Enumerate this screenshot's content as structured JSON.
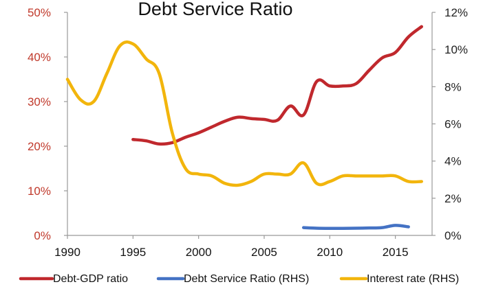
{
  "chart_data": {
    "type": "line",
    "title": "Debt Service Ratio",
    "x_ticks": [
      "1990",
      "1995",
      "2000",
      "2005",
      "2010",
      "2015"
    ],
    "x_ticks_values": [
      1990,
      1995,
      2000,
      2005,
      2010,
      2015
    ],
    "xlim": [
      1990,
      2017.8
    ],
    "y_left": {
      "ticks": [
        "0%",
        "10%",
        "20%",
        "30%",
        "40%",
        "50%"
      ],
      "tick_values": [
        0,
        10,
        20,
        30,
        40,
        50
      ],
      "ylim": [
        0,
        50
      ],
      "color": "#c0392b"
    },
    "y_right": {
      "ticks": [
        "0%",
        "2%",
        "4%",
        "6%",
        "8%",
        "10%",
        "12%"
      ],
      "tick_values": [
        0,
        2,
        4,
        6,
        8,
        10,
        12
      ],
      "ylim": [
        0,
        12
      ]
    },
    "series": [
      {
        "name": "Debt-GDP ratio",
        "axis": "left",
        "color": "#c0282d",
        "x": [
          1995,
          1996,
          1997,
          1998,
          1999,
          2000,
          2001,
          2002,
          2003,
          2004,
          2005,
          2006,
          2007,
          2008,
          2009,
          2010,
          2011,
          2012,
          2013,
          2014,
          2015,
          2016,
          2017
        ],
        "y": [
          21.5,
          21.2,
          20.5,
          20.8,
          22.0,
          23.0,
          24.3,
          25.6,
          26.5,
          26.2,
          26.0,
          25.8,
          29.0,
          27.0,
          34.5,
          33.5,
          33.5,
          34.0,
          37.0,
          39.8,
          41.0,
          44.5,
          46.8
        ]
      },
      {
        "name": "Debt Service Ratio (RHS)",
        "axis": "right",
        "color": "#4472c4",
        "x": [
          2008,
          2009,
          2010,
          2011,
          2012,
          2013,
          2014,
          2015,
          2016
        ],
        "y": [
          0.42,
          0.39,
          0.38,
          0.38,
          0.39,
          0.4,
          0.42,
          0.54,
          0.46
        ]
      },
      {
        "name": "Interest rate (RHS)",
        "axis": "right",
        "color": "#f2b50c",
        "x": [
          1990,
          1991,
          1992,
          1993,
          1994,
          1995,
          1996,
          1997,
          1998,
          1999,
          2000,
          2001,
          2002,
          2003,
          2004,
          2005,
          2006,
          2007,
          2008,
          2009,
          2010,
          2011,
          2012,
          2013,
          2014,
          2015,
          2016,
          2017
        ],
        "y": [
          8.4,
          7.3,
          7.2,
          8.7,
          10.2,
          10.3,
          9.5,
          8.7,
          5.5,
          3.6,
          3.3,
          3.2,
          2.8,
          2.7,
          2.9,
          3.3,
          3.3,
          3.3,
          3.9,
          2.8,
          2.9,
          3.2,
          3.2,
          3.2,
          3.2,
          3.2,
          2.9,
          2.9
        ]
      }
    ],
    "legend_position": "bottom",
    "grid": false
  }
}
